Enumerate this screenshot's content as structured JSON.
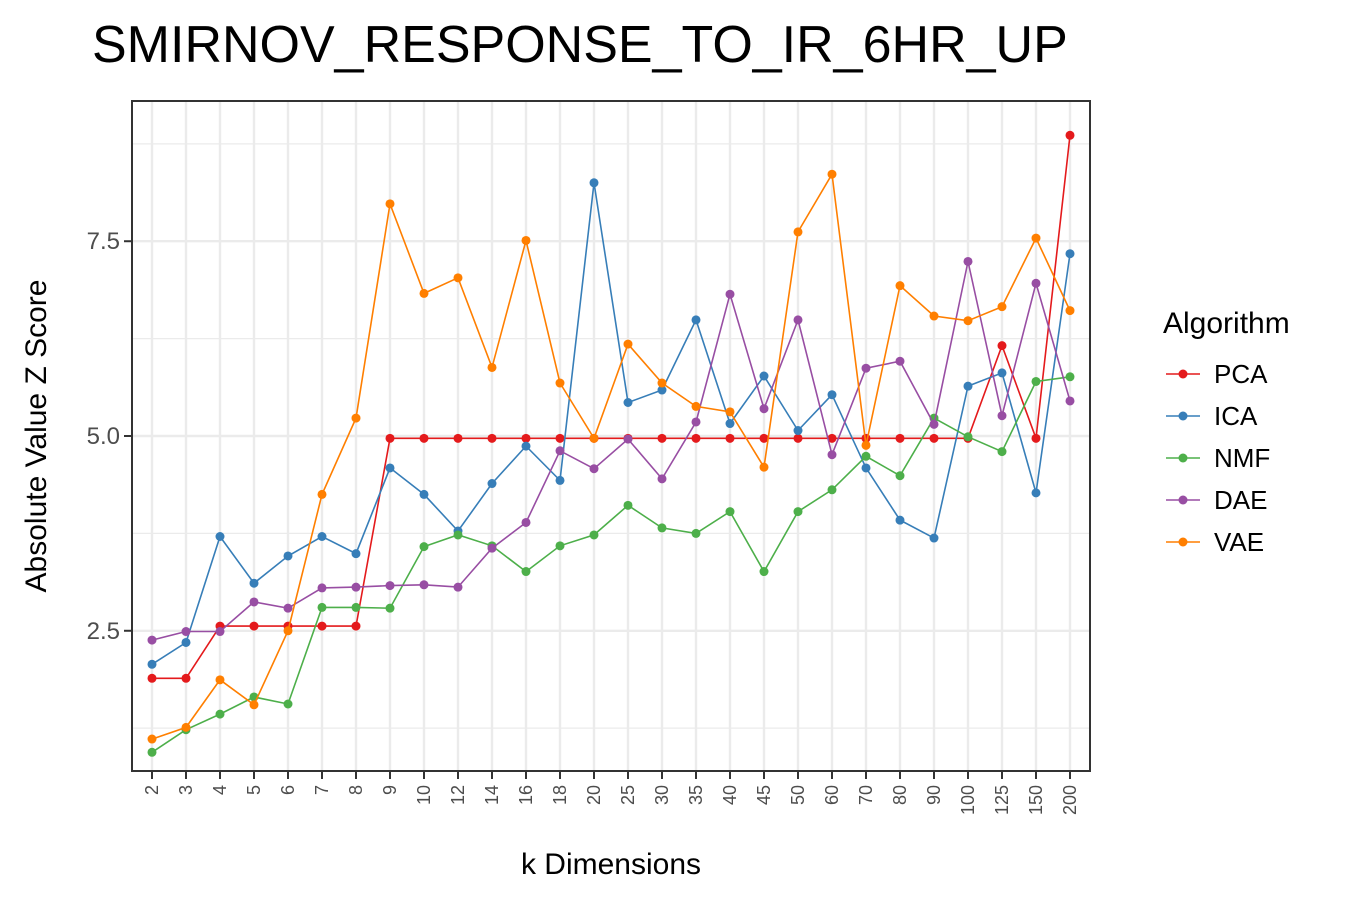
{
  "chart_data": {
    "type": "line",
    "title": "SMIRNOV_RESPONSE_TO_IR_6HR_UP",
    "xlabel": "k Dimensions",
    "ylabel": "Absolute Value Z Score",
    "categories": [
      "2",
      "3",
      "4",
      "5",
      "6",
      "7",
      "8",
      "9",
      "10",
      "12",
      "14",
      "16",
      "18",
      "20",
      "25",
      "30",
      "35",
      "40",
      "45",
      "50",
      "60",
      "70",
      "80",
      "90",
      "100",
      "125",
      "150",
      "200"
    ],
    "yticks": [
      "2.5",
      "5.0",
      "7.5"
    ],
    "ylim": [
      0.7,
      9.3
    ],
    "grid": true,
    "legend": {
      "title": "Algorithm",
      "position": "right"
    },
    "series": [
      {
        "name": "PCA",
        "color": "#E41A1C",
        "values": [
          1.89,
          1.89,
          2.56,
          2.56,
          2.56,
          2.56,
          2.56,
          4.97,
          4.97,
          4.97,
          4.97,
          4.97,
          4.97,
          4.97,
          4.97,
          4.97,
          4.97,
          4.97,
          4.97,
          4.97,
          4.97,
          4.97,
          4.97,
          4.97,
          4.97,
          6.16,
          4.97,
          8.86
        ]
      },
      {
        "name": "ICA",
        "color": "#377EB8",
        "values": [
          2.07,
          2.35,
          3.71,
          3.11,
          3.46,
          3.71,
          3.49,
          4.59,
          4.25,
          3.78,
          4.39,
          4.87,
          4.43,
          8.25,
          5.43,
          5.59,
          6.49,
          5.16,
          5.77,
          5.07,
          5.53,
          4.59,
          3.92,
          3.69,
          5.64,
          5.81,
          4.27,
          7.34
        ]
      },
      {
        "name": "NMF",
        "color": "#4DAF4A",
        "values": [
          0.94,
          1.23,
          1.43,
          1.65,
          1.56,
          2.8,
          2.8,
          2.79,
          3.58,
          3.73,
          3.59,
          3.26,
          3.59,
          3.73,
          4.11,
          3.82,
          3.75,
          4.03,
          3.26,
          4.03,
          4.31,
          4.74,
          4.49,
          5.23,
          4.99,
          4.8,
          5.7,
          5.76
        ]
      },
      {
        "name": "DAE",
        "color": "#984EA3",
        "values": [
          2.38,
          2.49,
          2.49,
          2.87,
          2.79,
          3.05,
          3.06,
          3.08,
          3.09,
          3.06,
          3.56,
          3.89,
          4.81,
          4.58,
          4.96,
          4.45,
          5.18,
          6.82,
          5.35,
          6.49,
          4.76,
          5.87,
          5.96,
          5.15,
          7.24,
          5.26,
          6.96,
          5.45
        ]
      },
      {
        "name": "VAE",
        "color": "#FF7F00",
        "values": [
          1.11,
          1.26,
          1.87,
          1.55,
          2.5,
          4.25,
          5.23,
          7.98,
          6.83,
          7.03,
          5.88,
          7.51,
          5.68,
          4.97,
          6.18,
          5.68,
          5.38,
          5.31,
          4.6,
          7.62,
          8.36,
          4.88,
          6.93,
          6.54,
          6.48,
          6.66,
          7.54,
          6.61
        ]
      }
    ]
  }
}
